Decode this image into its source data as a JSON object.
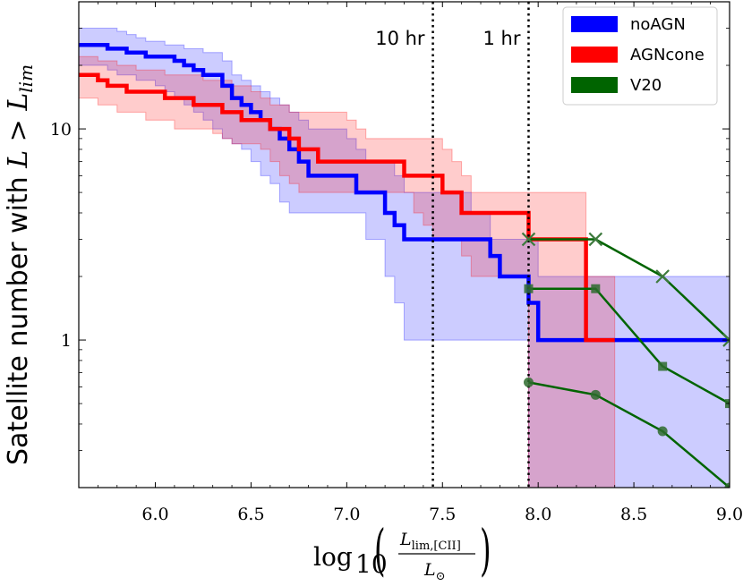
{
  "chart_data": {
    "type": "line",
    "x_scale": "linear",
    "y_scale": "log",
    "xlim": [
      5.6,
      9.0
    ],
    "ylim": [
      0.2,
      40
    ],
    "x_ticks": [
      6.0,
      6.5,
      7.0,
      7.5,
      8.0,
      8.5,
      9.0
    ],
    "x_tick_labels": [
      "6.0",
      "6.5",
      "7.0",
      "7.5",
      "8.0",
      "8.5",
      "9.0"
    ],
    "y_ticks": [
      1,
      10
    ],
    "y_tick_labels": [
      "1",
      "10"
    ],
    "ylabel_text": "Satellite number with ",
    "ylabel_math": "L > L",
    "ylabel_sub": "lim",
    "xlabel_log": "log",
    "xlabel_log_sub": "10",
    "xlabel_num": "L",
    "xlabel_num_sub": "lim,[CII]",
    "xlabel_den": "L",
    "xlabel_den_sub": "⊙",
    "legend_position": "top-right",
    "vlines": [
      {
        "x": 7.45,
        "label": "10 hr"
      },
      {
        "x": 7.95,
        "label": "1 hr"
      }
    ],
    "series": [
      {
        "name": "noAGN",
        "color": "#0000ff",
        "x": [
          5.6,
          5.7,
          5.75,
          5.8,
          5.85,
          5.9,
          5.95,
          6.0,
          6.05,
          6.1,
          6.15,
          6.2,
          6.25,
          6.3,
          6.35,
          6.4,
          6.45,
          6.5,
          6.55,
          6.6,
          6.65,
          6.7,
          6.75,
          6.8,
          6.85,
          6.9,
          6.95,
          7.0,
          7.05,
          7.1,
          7.15,
          7.2,
          7.25,
          7.3,
          7.35,
          7.4,
          7.45,
          7.5,
          7.55,
          7.6,
          7.65,
          7.7,
          7.75,
          7.8,
          7.85,
          7.9,
          7.95,
          8.0,
          9.0
        ],
        "y": [
          25,
          25,
          24,
          24,
          23,
          23,
          22,
          22,
          22,
          21,
          20,
          19,
          18,
          18,
          16,
          14,
          13,
          12,
          11,
          10,
          9,
          8,
          7,
          6,
          6,
          6,
          6,
          6,
          5,
          5,
          5,
          4,
          3.5,
          3,
          3,
          3,
          3,
          3,
          3,
          3,
          3,
          3,
          2.5,
          2,
          2,
          2,
          1.5,
          1,
          1
        ],
        "band_lower": [
          20,
          20,
          19,
          18,
          18,
          17,
          17,
          16,
          15,
          14,
          13,
          12,
          11,
          10,
          9,
          8.5,
          8,
          7,
          6,
          5.5,
          4.5,
          4,
          4,
          4,
          4,
          4,
          4,
          4,
          4,
          3,
          3,
          2,
          1.5,
          1,
          1,
          1,
          1,
          1,
          1,
          1,
          1,
          1,
          1,
          1,
          1,
          1,
          0.2,
          0.2,
          0.2
        ],
        "band_upper": [
          30,
          30,
          30,
          29,
          28,
          27,
          26,
          26,
          25,
          25,
          24,
          24,
          23,
          23,
          21,
          18,
          17,
          16,
          15,
          14,
          13,
          12,
          11,
          10,
          10,
          10,
          10,
          9,
          8,
          7,
          7,
          7,
          6,
          5,
          5,
          5,
          5,
          5,
          5,
          5,
          4,
          4,
          3,
          3,
          3,
          3,
          3,
          2,
          2
        ]
      },
      {
        "name": "AGNcone",
        "color": "#ff0000",
        "x": [
          5.6,
          5.7,
          5.75,
          5.8,
          5.85,
          5.9,
          5.95,
          6.0,
          6.05,
          6.1,
          6.15,
          6.2,
          6.25,
          6.3,
          6.35,
          6.4,
          6.45,
          6.5,
          6.55,
          6.6,
          6.65,
          6.7,
          6.75,
          6.8,
          6.85,
          6.9,
          6.95,
          7.0,
          7.05,
          7.1,
          7.15,
          7.2,
          7.25,
          7.3,
          7.35,
          7.4,
          7.45,
          7.5,
          7.55,
          7.6,
          7.65,
          7.7,
          7.75,
          7.8,
          7.85,
          7.9,
          7.95,
          8.0,
          8.25,
          8.4
        ],
        "y": [
          18,
          17,
          16,
          16,
          15,
          15,
          15,
          15,
          14,
          14,
          14,
          13,
          13,
          13,
          12,
          12,
          11,
          11,
          11,
          10,
          10,
          9,
          8,
          8,
          7,
          7,
          7,
          7,
          7,
          7,
          7,
          7,
          7,
          6,
          6,
          6,
          6,
          5,
          5,
          4,
          4,
          4,
          4,
          4,
          4,
          4,
          3,
          3,
          1,
          1
        ],
        "band_lower": [
          14,
          13,
          13,
          12,
          12,
          12,
          11,
          11,
          11,
          10,
          10,
          10,
          10,
          9.5,
          9,
          8.5,
          8.5,
          8.5,
          8,
          7,
          6,
          5.5,
          5,
          5,
          5,
          5,
          5,
          5,
          5,
          5,
          5,
          5,
          5,
          5,
          4,
          3.5,
          3,
          3,
          3,
          2.5,
          2,
          2,
          2,
          2,
          2,
          2,
          0.2,
          0.2,
          0.2,
          0.2
        ],
        "band_upper": [
          22,
          21,
          21,
          20,
          20,
          19,
          19,
          19,
          18,
          18,
          18,
          18,
          17,
          17,
          17,
          16,
          16,
          15,
          14,
          13,
          13,
          12,
          12,
          12,
          12,
          12,
          12,
          11,
          10,
          9,
          9,
          9,
          9,
          9,
          9,
          9,
          9,
          8,
          7,
          6,
          5,
          5,
          5,
          5,
          5,
          5,
          5,
          5,
          2,
          2
        ]
      },
      {
        "name": "V20",
        "color": "#006400",
        "lines": [
          {
            "marker": "x",
            "x": [
              7.95,
              8.3,
              8.65,
              9.0
            ],
            "y": [
              3.0,
              3.0,
              2.0,
              1.0
            ]
          },
          {
            "marker": "s",
            "x": [
              7.95,
              8.3,
              8.65,
              9.0
            ],
            "y": [
              1.75,
              1.75,
              0.75,
              0.5
            ]
          },
          {
            "marker": "o",
            "x": [
              7.95,
              8.3,
              8.65,
              9.0
            ],
            "y": [
              0.63,
              0.55,
              0.37,
              0.2
            ]
          }
        ]
      }
    ]
  }
}
